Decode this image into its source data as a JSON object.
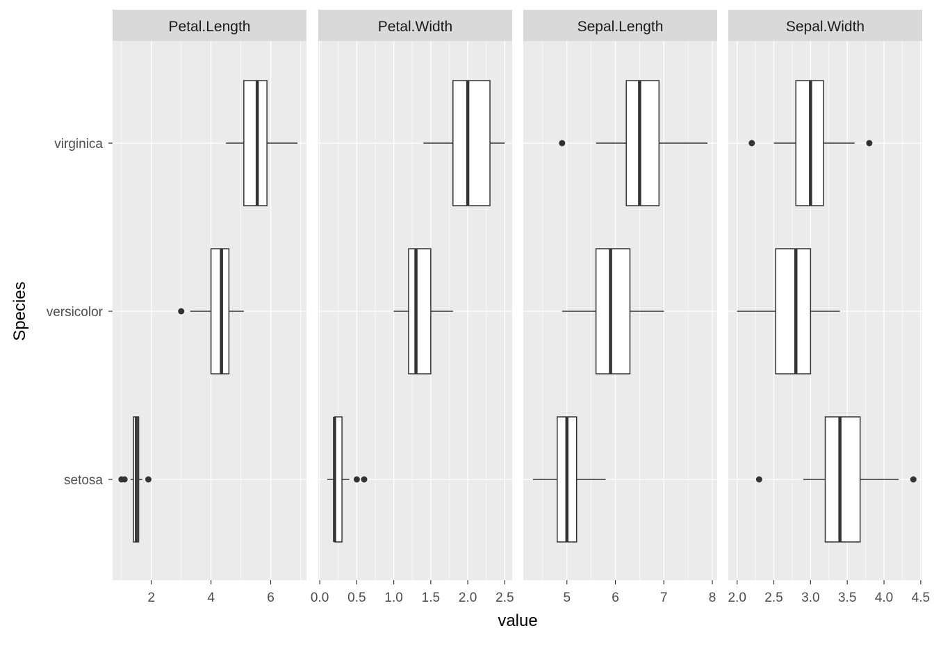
{
  "chart_data": {
    "type": "boxplot",
    "orientation": "horizontal",
    "xlabel": "value",
    "ylabel": "Species",
    "categories": [
      "setosa",
      "versicolor",
      "virginica"
    ],
    "grid": true,
    "panels": [
      {
        "name": "Petal.Length",
        "xlim": [
          0.7,
          7.2
        ],
        "ticks": [
          2,
          4,
          6
        ],
        "tick_labels": [
          "2",
          "4",
          "6"
        ],
        "boxes": {
          "setosa": {
            "whisker_low": 1.3,
            "q1": 1.4,
            "median": 1.5,
            "q3": 1.575,
            "whisker_high": 1.7,
            "outliers": [
              1.0,
              1.1,
              1.9
            ]
          },
          "versicolor": {
            "whisker_low": 3.3,
            "q1": 4.0,
            "median": 4.35,
            "q3": 4.6,
            "whisker_high": 5.1,
            "outliers": [
              3.0
            ]
          },
          "virginica": {
            "whisker_low": 4.5,
            "q1": 5.1,
            "median": 5.55,
            "q3": 5.875,
            "whisker_high": 6.9,
            "outliers": []
          }
        }
      },
      {
        "name": "Petal.Width",
        "xlim": [
          -0.02,
          2.6
        ],
        "ticks": [
          0.0,
          0.5,
          1.0,
          1.5,
          2.0,
          2.5
        ],
        "tick_labels": [
          "0.0",
          "0.5",
          "1.0",
          "1.5",
          "2.0",
          "2.5"
        ],
        "boxes": {
          "setosa": {
            "whisker_low": 0.1,
            "q1": 0.2,
            "median": 0.2,
            "q3": 0.3,
            "whisker_high": 0.4,
            "outliers": [
              0.5,
              0.6
            ]
          },
          "versicolor": {
            "whisker_low": 1.0,
            "q1": 1.2,
            "median": 1.3,
            "q3": 1.5,
            "whisker_high": 1.8,
            "outliers": []
          },
          "virginica": {
            "whisker_low": 1.4,
            "q1": 1.8,
            "median": 2.0,
            "q3": 2.3,
            "whisker_high": 2.5,
            "outliers": []
          }
        }
      },
      {
        "name": "Sepal.Length",
        "xlim": [
          4.1,
          8.1
        ],
        "ticks": [
          5,
          6,
          7,
          8
        ],
        "tick_labels": [
          "5",
          "6",
          "7",
          "8"
        ],
        "boxes": {
          "setosa": {
            "whisker_low": 4.3,
            "q1": 4.8,
            "median": 5.0,
            "q3": 5.2,
            "whisker_high": 5.8,
            "outliers": []
          },
          "versicolor": {
            "whisker_low": 4.9,
            "q1": 5.6,
            "median": 5.9,
            "q3": 6.3,
            "whisker_high": 7.0,
            "outliers": []
          },
          "virginica": {
            "whisker_low": 5.6,
            "q1": 6.225,
            "median": 6.5,
            "q3": 6.9,
            "whisker_high": 7.9,
            "outliers": [
              4.9
            ]
          }
        }
      },
      {
        "name": "Sepal.Width",
        "xlim": [
          1.88,
          4.52
        ],
        "ticks": [
          2.0,
          2.5,
          3.0,
          3.5,
          4.0,
          4.5
        ],
        "tick_labels": [
          "2.0",
          "2.5",
          "3.0",
          "3.5",
          "4.0",
          "4.5"
        ],
        "boxes": {
          "setosa": {
            "whisker_low": 2.9,
            "q1": 3.2,
            "median": 3.4,
            "q3": 3.675,
            "whisker_high": 4.2,
            "outliers": [
              2.3,
              4.4
            ]
          },
          "versicolor": {
            "whisker_low": 2.0,
            "q1": 2.525,
            "median": 2.8,
            "q3": 3.0,
            "whisker_high": 3.4,
            "outliers": []
          },
          "virginica": {
            "whisker_low": 2.5,
            "q1": 2.8,
            "median": 3.0,
            "q3": 3.175,
            "whisker_high": 3.6,
            "outliers": [
              2.2,
              3.8
            ]
          }
        }
      }
    ],
    "colors": {
      "panel_background": "#ebebeb",
      "strip_background": "#d9d9d9",
      "grid": "#ffffff",
      "box_fill": "#ffffff",
      "box_line": "#333333",
      "outlier": "#333333",
      "tick_text": "#4d4d4d",
      "strip_text": "#1a1a1a"
    }
  }
}
